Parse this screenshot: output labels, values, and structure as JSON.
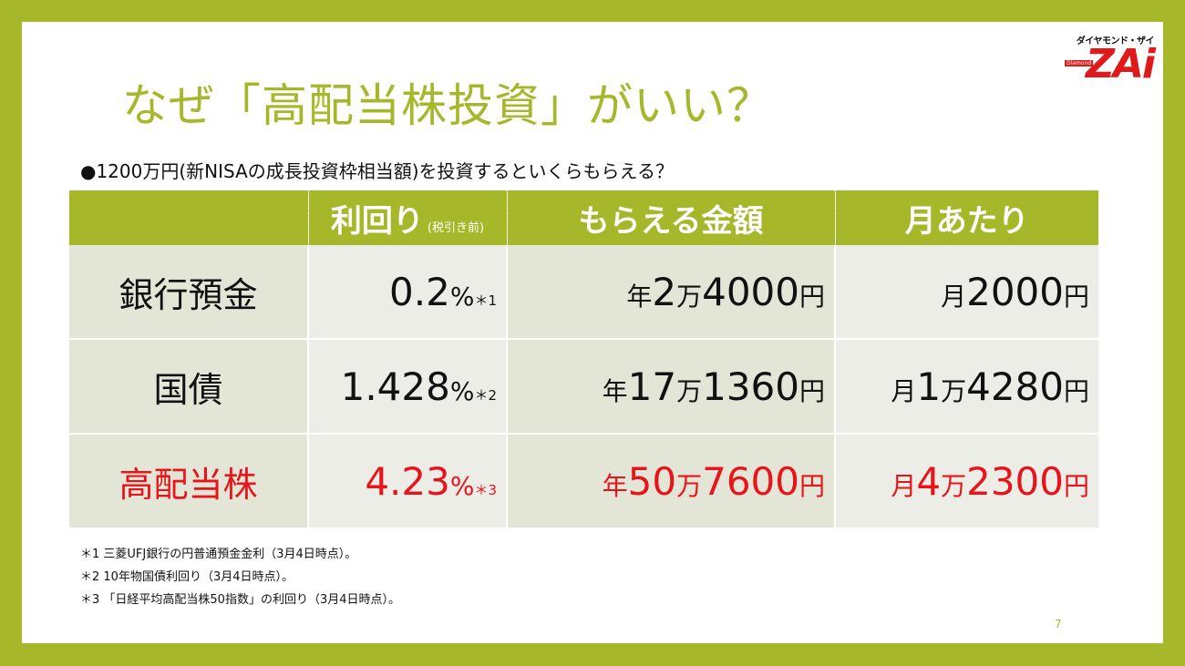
{
  "title": "なぜ「高配当株投資」がいい？",
  "logo": {
    "kana": "ダイヤモンド・ザイ",
    "word": "ZAi",
    "sub": "Diamond"
  },
  "question": "●1200万円(新NISAの成長投資枠相当額)を投資するといくらもらえる？",
  "table": {
    "headers": {
      "rate": "利回り",
      "rate_note": "(税引き前)",
      "yearly": "もらえる金額",
      "monthly": "月あたり"
    },
    "rows": [
      {
        "label": "銀行預金",
        "rate": "0.2",
        "rate_unit": "%",
        "rate_note": "＊1",
        "year_prefix": "年",
        "year_value": "2",
        "year_man": "万",
        "year_rest": "4000",
        "year_unit": "円",
        "month_prefix": "月",
        "month_value": "2000",
        "month_man": "",
        "month_rest": "",
        "month_unit": "円"
      },
      {
        "label": "国債",
        "rate": "1.428",
        "rate_unit": "%",
        "rate_note": "＊2",
        "year_prefix": "年",
        "year_value": "17",
        "year_man": "万",
        "year_rest": "1360",
        "year_unit": "円",
        "month_prefix": "月",
        "month_value": "1",
        "month_man": "万",
        "month_rest": "4280",
        "month_unit": "円"
      },
      {
        "label": "高配当株",
        "rate": "4.23",
        "rate_unit": "%",
        "rate_note": "＊3",
        "year_prefix": "年",
        "year_value": "50",
        "year_man": "万",
        "year_rest": "7600",
        "year_unit": "円",
        "month_prefix": "月",
        "month_value": "4",
        "month_man": "万",
        "month_rest": "2300",
        "month_unit": "円"
      }
    ]
  },
  "notes": [
    "＊1 三菱UFJ銀行の円普通預金金利（3月4日時点）。",
    "＊2 10年物国債利回り（3月4日時点）。",
    "＊3 「日経平均高配当株50指数」の利回り（3月4日時点）。"
  ],
  "page_number": "7",
  "colors": {
    "accent": "#a6b72a",
    "highlight": "#e8141a"
  }
}
